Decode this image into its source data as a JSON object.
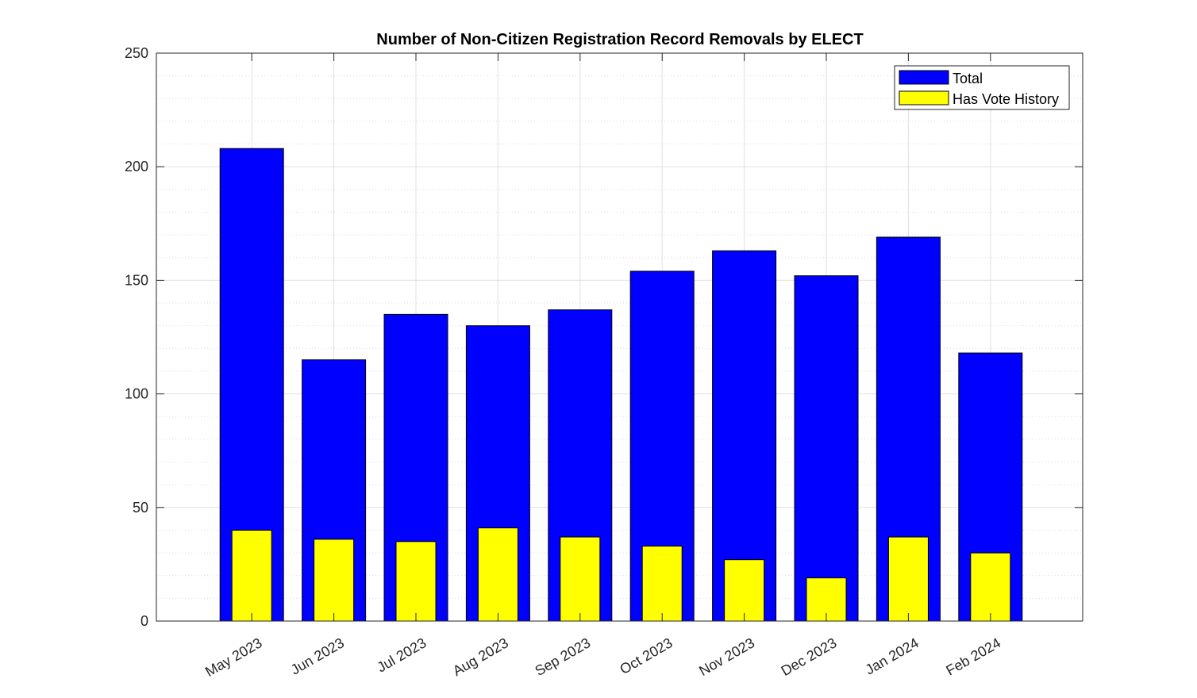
{
  "chart_data": {
    "type": "bar",
    "title": "Number of Non-Citizen Registration Record Removals by ELECT",
    "xlabel": "",
    "ylabel": "",
    "categories": [
      "May 2023",
      "Jun 2023",
      "Jul 2023",
      "Aug 2023",
      "Sep 2023",
      "Oct 2023",
      "Nov 2023",
      "Dec 2023",
      "Jan 2024",
      "Feb 2024"
    ],
    "series": [
      {
        "name": "Total",
        "color": "#0000ff",
        "values": [
          208,
          115,
          135,
          130,
          137,
          154,
          163,
          152,
          169,
          118
        ]
      },
      {
        "name": "Has Vote History",
        "color": "#ffff00",
        "values": [
          40,
          36,
          35,
          41,
          37,
          33,
          27,
          19,
          37,
          30
        ]
      }
    ],
    "ylim": [
      0,
      250
    ],
    "yticks": [
      "0",
      "50",
      "100",
      "150",
      "200",
      "250"
    ],
    "grid": true,
    "legend_position": "top-right"
  }
}
